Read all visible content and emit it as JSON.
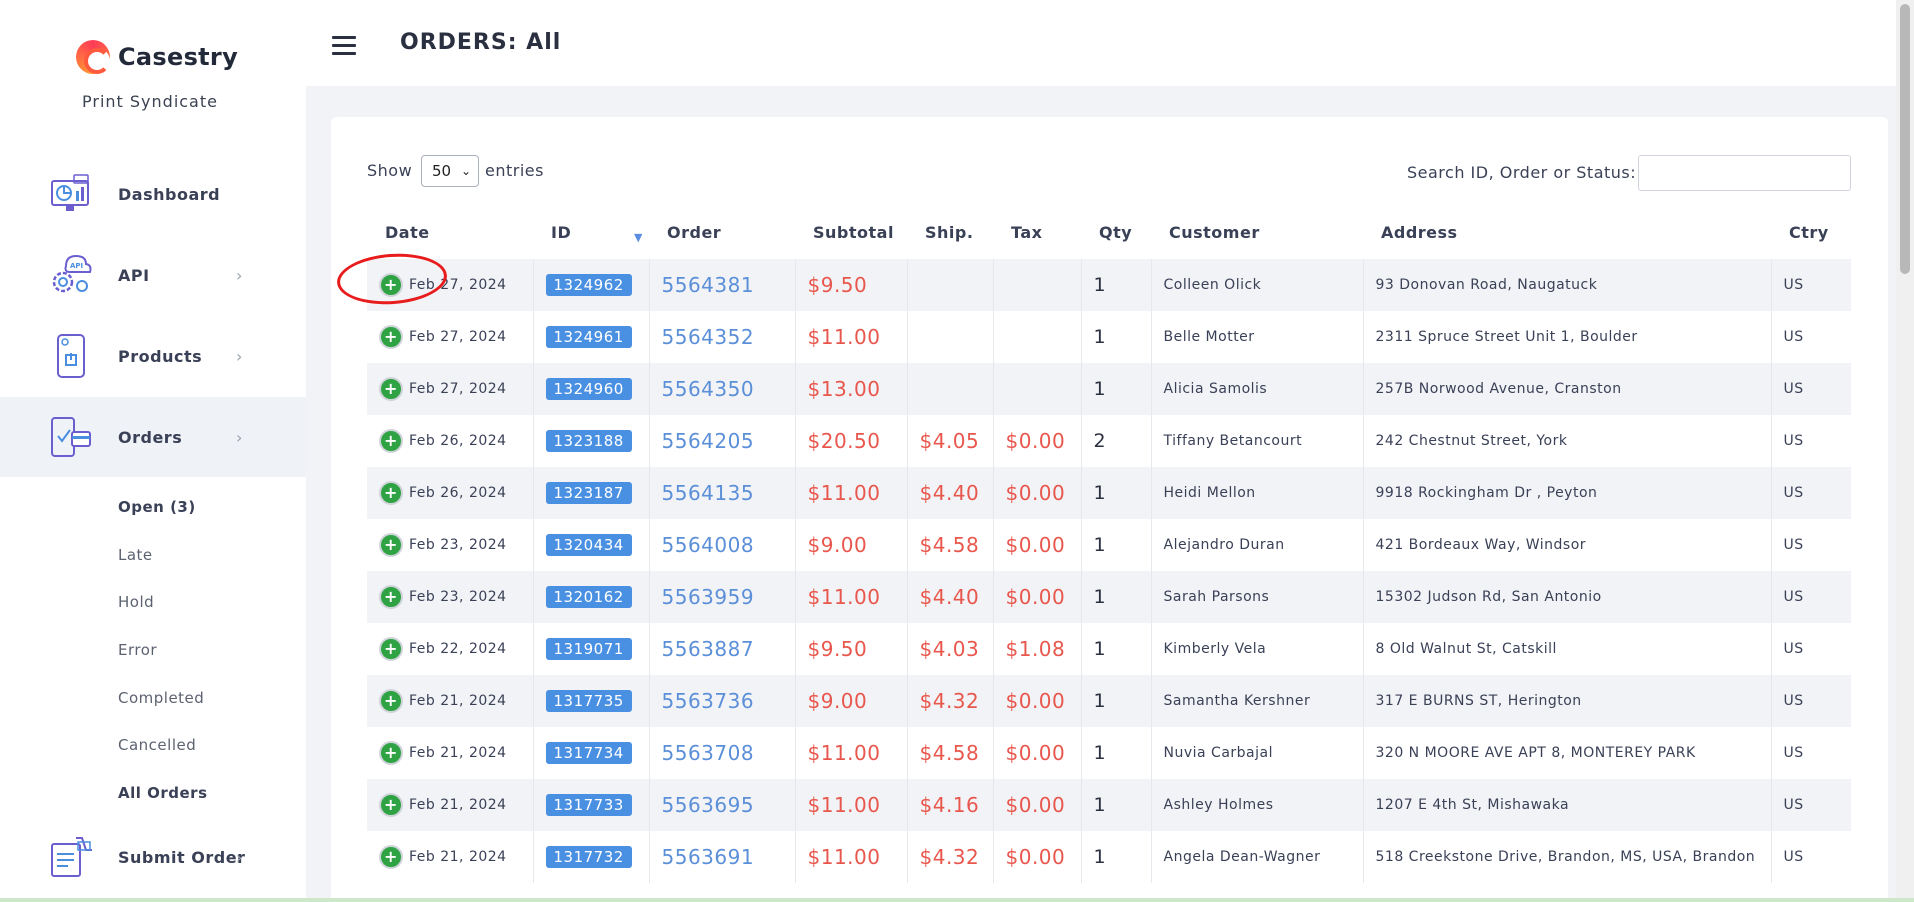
{
  "brand": {
    "name": "Casestry",
    "tagline": "Print Syndicate"
  },
  "header": {
    "title": "ORDERS: All"
  },
  "sidebar": {
    "items": [
      {
        "label": "Dashboard",
        "icon": "dashboard-icon",
        "chevron": ""
      },
      {
        "label": "API",
        "icon": "api-gear-icon",
        "chevron": "›"
      },
      {
        "label": "Products",
        "icon": "phone-case-icon",
        "chevron": "›"
      },
      {
        "label": "Orders",
        "icon": "orders-icon",
        "chevron": "›"
      },
      {
        "label": "Submit Order",
        "icon": "submit-order-icon",
        "chevron": "›"
      }
    ],
    "order_subitems": [
      {
        "label": "Open   (3)"
      },
      {
        "label": "Late"
      },
      {
        "label": "Hold"
      },
      {
        "label": "Error"
      },
      {
        "label": "Completed"
      },
      {
        "label": "Cancelled"
      },
      {
        "label": "All Orders"
      }
    ]
  },
  "table_controls": {
    "show_label": "Show",
    "entries_value": "50",
    "entries_label": "entries",
    "search_label": "Search ID, Order or Status:",
    "search_value": ""
  },
  "table": {
    "columns": [
      "Date",
      "ID",
      "Order",
      "Subtotal",
      "Ship.",
      "Tax",
      "Qty",
      "Customer",
      "Address",
      "Ctry"
    ],
    "rows": [
      {
        "date": "Feb 27, 2024",
        "id": "1324962",
        "order": "5564381",
        "subtotal": "$9.50",
        "ship": "",
        "tax": "",
        "qty": "1",
        "customer": "Colleen Olick",
        "address": "93 Donovan Road, Naugatuck",
        "ctry": "US"
      },
      {
        "date": "Feb 27, 2024",
        "id": "1324961",
        "order": "5564352",
        "subtotal": "$11.00",
        "ship": "",
        "tax": "",
        "qty": "1",
        "customer": "Belle Motter",
        "address": "2311 Spruce Street Unit 1, Boulder",
        "ctry": "US"
      },
      {
        "date": "Feb 27, 2024",
        "id": "1324960",
        "order": "5564350",
        "subtotal": "$13.00",
        "ship": "",
        "tax": "",
        "qty": "1",
        "customer": "Alicia Samolis",
        "address": "257B Norwood Avenue, Cranston",
        "ctry": "US"
      },
      {
        "date": "Feb 26, 2024",
        "id": "1323188",
        "order": "5564205",
        "subtotal": "$20.50",
        "ship": "$4.05",
        "tax": "$0.00",
        "qty": "2",
        "customer": "Tiffany Betancourt",
        "address": "242 Chestnut Street, York",
        "ctry": "US"
      },
      {
        "date": "Feb 26, 2024",
        "id": "1323187",
        "order": "5564135",
        "subtotal": "$11.00",
        "ship": "$4.40",
        "tax": "$0.00",
        "qty": "1",
        "customer": "Heidi Mellon",
        "address": "9918 Rockingham Dr , Peyton",
        "ctry": "US"
      },
      {
        "date": "Feb 23, 2024",
        "id": "1320434",
        "order": "5564008",
        "subtotal": "$9.00",
        "ship": "$4.58",
        "tax": "$0.00",
        "qty": "1",
        "customer": "Alejandro Duran",
        "address": "421 Bordeaux Way, Windsor",
        "ctry": "US"
      },
      {
        "date": "Feb 23, 2024",
        "id": "1320162",
        "order": "5563959",
        "subtotal": "$11.00",
        "ship": "$4.40",
        "tax": "$0.00",
        "qty": "1",
        "customer": "Sarah Parsons",
        "address": "15302 Judson Rd, San Antonio",
        "ctry": "US"
      },
      {
        "date": "Feb 22, 2024",
        "id": "1319071",
        "order": "5563887",
        "subtotal": "$9.50",
        "ship": "$4.03",
        "tax": "$1.08",
        "qty": "1",
        "customer": "Kimberly Vela",
        "address": "8 Old Walnut St, Catskill",
        "ctry": "US"
      },
      {
        "date": "Feb 21, 2024",
        "id": "1317735",
        "order": "5563736",
        "subtotal": "$9.00",
        "ship": "$4.32",
        "tax": "$0.00",
        "qty": "1",
        "customer": "Samantha Kershner",
        "address": "317 E BURNS ST, Herington",
        "ctry": "US"
      },
      {
        "date": "Feb 21, 2024",
        "id": "1317734",
        "order": "5563708",
        "subtotal": "$11.00",
        "ship": "$4.58",
        "tax": "$0.00",
        "qty": "1",
        "customer": "Nuvia Carbajal",
        "address": "320 N MOORE AVE APT 8, MONTEREY PARK",
        "ctry": "US"
      },
      {
        "date": "Feb 21, 2024",
        "id": "1317733",
        "order": "5563695",
        "subtotal": "$11.00",
        "ship": "$4.16",
        "tax": "$0.00",
        "qty": "1",
        "customer": "Ashley Holmes",
        "address": "1207 E 4th St, Mishawaka",
        "ctry": "US"
      },
      {
        "date": "Feb 21, 2024",
        "id": "1317732",
        "order": "5563691",
        "subtotal": "$11.00",
        "ship": "$4.32",
        "tax": "$0.00",
        "qty": "1",
        "customer": "Angela Dean-Wagner",
        "address": "518 Creekstone Drive, Brandon, MS, USA, Brandon",
        "ctry": "US"
      }
    ]
  },
  "colors": {
    "accent": "#4a90e2",
    "money": "#e8574d",
    "link": "#5b8fd8",
    "expand": "#2fa343",
    "annotation": "#e81c1c"
  }
}
